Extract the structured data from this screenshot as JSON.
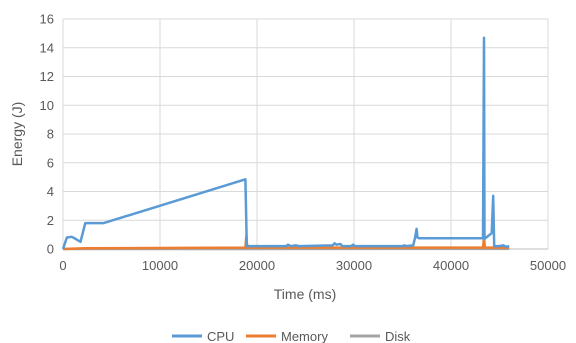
{
  "chart_data": {
    "type": "line",
    "xlabel": "Time (ms)",
    "ylabel": "Energy (J)",
    "xlim": [
      0,
      50000
    ],
    "ylim": [
      0,
      16
    ],
    "x_ticks": [
      0,
      10000,
      20000,
      30000,
      40000,
      50000
    ],
    "y_ticks": [
      0,
      2,
      4,
      6,
      8,
      10,
      12,
      14,
      16
    ],
    "grid": "major gridlines on",
    "legend_position": "bottom",
    "series": [
      {
        "name": "CPU",
        "color": "#5b9bd5",
        "points": [
          [
            0,
            0
          ],
          [
            400,
            0.8
          ],
          [
            900,
            0.85
          ],
          [
            1300,
            0.7
          ],
          [
            1800,
            0.5
          ],
          [
            2300,
            1.8
          ],
          [
            4200,
            1.8
          ],
          [
            18800,
            4.85
          ],
          [
            18950,
            0.2
          ],
          [
            19200,
            0.2
          ],
          [
            23000,
            0.2
          ],
          [
            23200,
            0.3
          ],
          [
            23500,
            0.2
          ],
          [
            24000,
            0.25
          ],
          [
            24300,
            0.2
          ],
          [
            27800,
            0.25
          ],
          [
            28000,
            0.4
          ],
          [
            28200,
            0.3
          ],
          [
            28600,
            0.35
          ],
          [
            28800,
            0.2
          ],
          [
            29700,
            0.2
          ],
          [
            29900,
            0.3
          ],
          [
            30100,
            0.2
          ],
          [
            35000,
            0.2
          ],
          [
            35200,
            0.25
          ],
          [
            35400,
            0.2
          ],
          [
            36100,
            0.25
          ],
          [
            36300,
            0.8
          ],
          [
            36450,
            1.4
          ],
          [
            36550,
            0.8
          ],
          [
            36700,
            0.75
          ],
          [
            43300,
            0.75
          ],
          [
            43400,
            14.7
          ],
          [
            43450,
            0.7
          ],
          [
            44200,
            1.1
          ],
          [
            44350,
            3.7
          ],
          [
            44450,
            0.2
          ],
          [
            45000,
            0.2
          ],
          [
            45400,
            0.25
          ],
          [
            45700,
            0.15
          ],
          [
            46000,
            0.2
          ]
        ]
      },
      {
        "name": "Memory",
        "color": "#ed7d31",
        "points": [
          [
            0,
            0
          ],
          [
            2300,
            0.05
          ],
          [
            18800,
            0.1
          ],
          [
            18900,
            0.9
          ],
          [
            19000,
            0.1
          ],
          [
            43300,
            0.1
          ],
          [
            43400,
            0.8
          ],
          [
            43500,
            0.1
          ],
          [
            46000,
            0.1
          ]
        ]
      },
      {
        "name": "Disk",
        "color": "#a5a5a5",
        "points": [
          [
            0,
            0
          ],
          [
            46000,
            0.01
          ]
        ]
      }
    ]
  }
}
